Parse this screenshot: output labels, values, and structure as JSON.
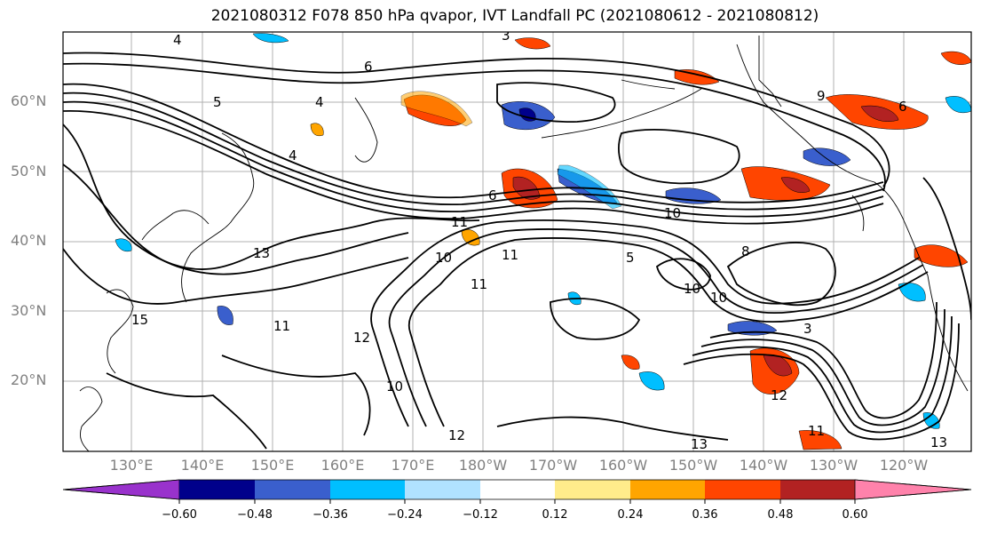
{
  "title": "2021080312 F078 850 hPa qvapor, IVT Landfall PC (2021080612 - 2021080812)",
  "lat_labels": [
    "60°N",
    "50°N",
    "40°N",
    "30°N",
    "20°N"
  ],
  "lon_labels": [
    "130°E",
    "140°E",
    "150°E",
    "160°E",
    "170°E",
    "180°W",
    "170°W",
    "160°W",
    "150°W",
    "140°W",
    "130°W",
    "120°W"
  ],
  "colorbar": {
    "colors": [
      "#9932cc",
      "#00008b",
      "#3a5fcd",
      "#00bfff",
      "#b0e2ff",
      "#ffffff",
      "#ffec8b",
      "#ffa500",
      "#ff4500",
      "#b22222",
      "#ff82ab"
    ],
    "tick_labels": [
      "−0.60",
      "−0.48",
      "−0.36",
      "−0.24",
      "−0.12",
      "0.12",
      "0.24",
      "0.36",
      "0.48",
      "0.60"
    ]
  },
  "contour_labels": [
    "3",
    "4",
    "4",
    "5",
    "6",
    "6",
    "4",
    "6",
    "9",
    "11",
    "13",
    "15",
    "11",
    "12",
    "10",
    "11",
    "11",
    "10",
    "10",
    "8",
    "10",
    "5",
    "3",
    "12",
    "11",
    "13",
    "13",
    "12",
    "10"
  ]
}
